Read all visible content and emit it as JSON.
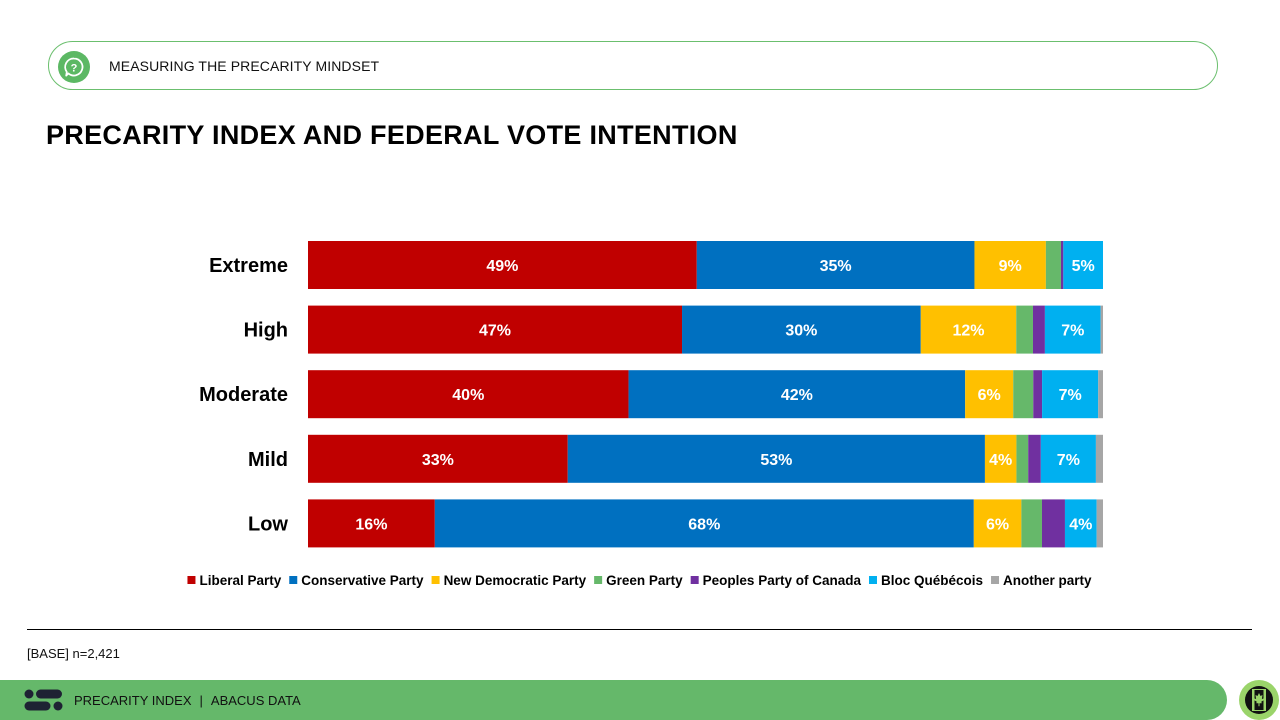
{
  "header": {
    "section_label": "MEASURING THE PRECARITY MINDSET",
    "icon": "question-bubble-icon"
  },
  "title": "PRECARITY INDEX AND FEDERAL VOTE INTENTION",
  "chart_data": {
    "type": "bar",
    "orientation": "horizontal",
    "stacked": true,
    "percent_stacked": true,
    "title": "PRECARITY INDEX AND FEDERAL VOTE INTENTION",
    "xlabel": "",
    "ylabel": "",
    "xlim": [
      0,
      100
    ],
    "grid": false,
    "legend_position": "bottom",
    "categories": [
      "Extreme",
      "High",
      "Moderate",
      "Mild",
      "Low"
    ],
    "series": [
      {
        "name": "Liberal Party",
        "color": "#c00000",
        "values": [
          49,
          47,
          40,
          33,
          16
        ],
        "labels": [
          "49%",
          "47%",
          "40%",
          "33%",
          "16%"
        ]
      },
      {
        "name": "Conservative Party",
        "color": "#0070c0",
        "values": [
          35,
          30,
          42,
          53,
          68
        ],
        "labels": [
          "35%",
          "30%",
          "42%",
          "53%",
          "68%"
        ]
      },
      {
        "name": "New Democratic Party",
        "color": "#ffc000",
        "values": [
          9,
          12,
          6,
          4,
          6
        ],
        "labels": [
          "9%",
          "12%",
          "6%",
          "4%",
          "6%"
        ]
      },
      {
        "name": "Green Party",
        "color": "#66b86a",
        "values": [
          1.9,
          2.1,
          2.5,
          1.5,
          2.6
        ],
        "labels": [
          "",
          "",
          "",
          "",
          ""
        ]
      },
      {
        "name": "Peoples Party of Canada",
        "color": "#7030a0",
        "values": [
          0.3,
          1.5,
          1.1,
          1.6,
          2.9
        ],
        "labels": [
          "",
          "",
          "",
          "",
          ""
        ]
      },
      {
        "name": "Bloc Québécois",
        "color": "#00b0f0",
        "values": [
          5,
          7,
          7,
          7,
          4
        ],
        "labels": [
          "5%",
          "7%",
          "7%",
          "7%",
          "4%"
        ]
      },
      {
        "name": "Another party",
        "color": "#a6a6a6",
        "values": [
          0,
          0.3,
          0.6,
          0.9,
          0.8
        ],
        "labels": [
          "",
          "",
          "",
          "",
          ""
        ]
      }
    ]
  },
  "base_note": "[BASE] n=2,421",
  "footer": {
    "left_text": "PRECARITY INDEX",
    "separator": "|",
    "right_text": "ABACUS DATA",
    "logo_icon": "abacus-logo-icon",
    "badge_icon": "canada-flag-icon"
  }
}
